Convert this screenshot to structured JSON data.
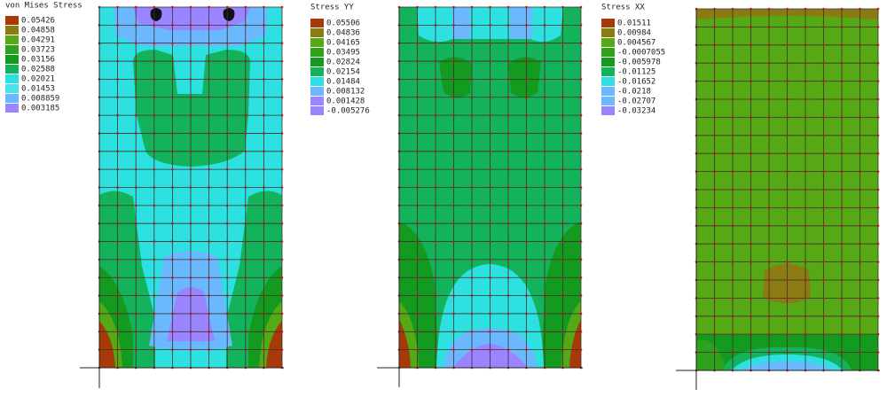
{
  "panels": [
    {
      "title": "von Mises Stress",
      "legend": [
        {
          "label": "0.05426",
          "color": "#a83a08"
        },
        {
          "label": "0.04858",
          "color": "#8a7c12"
        },
        {
          "label": "0.04291",
          "color": "#56a814"
        },
        {
          "label": "0.03723",
          "color": "#2ea21c"
        },
        {
          "label": "0.03156",
          "color": "#149a1e"
        },
        {
          "label": "0.02588",
          "color": "#14b25a"
        },
        {
          "label": "0.02021",
          "color": "#2ee0e0"
        },
        {
          "label": "0.01453",
          "color": "#44e6ea"
        },
        {
          "label": "0.008859",
          "color": "#6cb8ff"
        },
        {
          "label": "0.003185",
          "color": "#9a84ff"
        }
      ]
    },
    {
      "title": "Stress YY",
      "legend": [
        {
          "label": "0.05506",
          "color": "#a83a08"
        },
        {
          "label": "0.04836",
          "color": "#8a7c12"
        },
        {
          "label": "0.04165",
          "color": "#56a814"
        },
        {
          "label": "0.03495",
          "color": "#2ea21c"
        },
        {
          "label": "0.02824",
          "color": "#149a1e"
        },
        {
          "label": "0.02154",
          "color": "#14b25a"
        },
        {
          "label": "0.01484",
          "color": "#2ee0e0"
        },
        {
          "label": "0.008132",
          "color": "#6cb8ff"
        },
        {
          "label": "0.001428",
          "color": "#9a84ff"
        },
        {
          "label": "-0.005276",
          "color": "#9a84ff"
        }
      ]
    },
    {
      "title": "Stress XX",
      "legend": [
        {
          "label": "0.01511",
          "color": "#a83a08"
        },
        {
          "label": "0.00984",
          "color": "#8a7c12"
        },
        {
          "label": "0.004567",
          "color": "#56a814"
        },
        {
          "label": "-0.0007055",
          "color": "#2ea21c"
        },
        {
          "label": "-0.005978",
          "color": "#149a1e"
        },
        {
          "label": "-0.01125",
          "color": "#14b25a"
        },
        {
          "label": "-0.01652",
          "color": "#2ee0e0"
        },
        {
          "label": "-0.0218",
          "color": "#6cb8ff"
        },
        {
          "label": "-0.02707",
          "color": "#6cb8ff"
        },
        {
          "label": "-0.03234",
          "color": "#9a84ff"
        }
      ]
    }
  ]
}
